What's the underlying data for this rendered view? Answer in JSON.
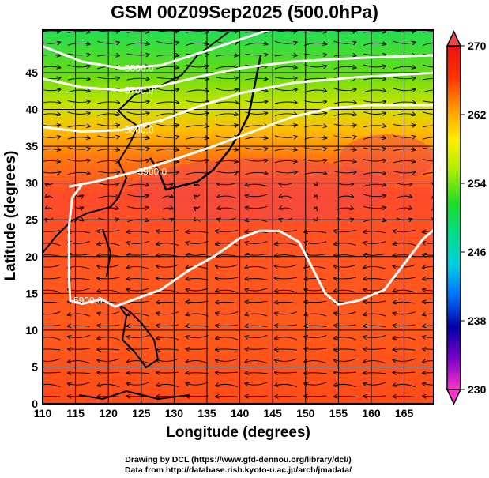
{
  "title": "GSM 00Z09Sep2025 (500.0hPa)",
  "xlabel": "Longitude (degrees)",
  "ylabel": "Latitude  (degrees)",
  "credits": [
    "Drawing by DCL (https://www.gfd-dennou.org/library/dcl/)",
    "Data from http://database.rish.kyoto-u.ac.jp/arch/jmadata/"
  ],
  "axes": {
    "x_ticks": [
      "110",
      "115",
      "120",
      "125",
      "130",
      "135",
      "140",
      "145",
      "150",
      "155",
      "160",
      "165"
    ],
    "y_ticks": [
      "0",
      "5",
      "10",
      "15",
      "20",
      "25",
      "30",
      "35",
      "40",
      "45"
    ],
    "xlim": [
      110,
      169.5
    ],
    "ylim": [
      0,
      50.8
    ]
  },
  "colorbar": {
    "ticks": [
      "270",
      "262",
      "254",
      "246",
      "238",
      "230"
    ],
    "range": [
      230,
      270
    ],
    "extend": "both",
    "colors": [
      "#ff33cc",
      "#7a00c8",
      "#0000a8",
      "#0070ff",
      "#00d0e0",
      "#00dd88",
      "#22dd22",
      "#aaee00",
      "#ffee00",
      "#ff9900",
      "#ff3300",
      "#ee1111"
    ]
  },
  "contours": [
    {
      "label": "5600.0",
      "points": [
        [
          110,
          48.6
        ],
        [
          116,
          46.5
        ],
        [
          122,
          45.6
        ],
        [
          128,
          46
        ],
        [
          135,
          48
        ],
        [
          140,
          49.5
        ],
        [
          145,
          51
        ]
      ]
    },
    {
      "label": "5700.0",
      "points": [
        [
          110,
          44.2
        ],
        [
          116,
          43
        ],
        [
          122,
          42.6
        ],
        [
          128,
          43.2
        ],
        [
          134,
          44.5
        ],
        [
          140,
          45.6
        ],
        [
          148,
          46.5
        ],
        [
          158,
          47
        ],
        [
          170,
          47.4
        ]
      ]
    },
    {
      "label": "5800.0",
      "points": [
        [
          110,
          37.6
        ],
        [
          116,
          37
        ],
        [
          122,
          37.2
        ],
        [
          128,
          38.5
        ],
        [
          134,
          40.5
        ],
        [
          140,
          42.2
        ],
        [
          148,
          43.6
        ],
        [
          158,
          44.4
        ],
        [
          170,
          45
        ]
      ]
    },
    {
      "label": "5900.0",
      "points": [
        [
          114,
          29.5
        ],
        [
          118,
          30.2
        ],
        [
          124,
          31.5
        ],
        [
          130,
          33.2
        ],
        [
          136,
          35
        ],
        [
          142,
          37
        ],
        [
          148,
          39
        ],
        [
          154,
          40.2
        ],
        [
          160,
          40.6
        ],
        [
          170,
          40.6
        ]
      ]
    },
    {
      "label": "5900.0",
      "points": [
        [
          116,
          29.8
        ],
        [
          114.5,
          28
        ],
        [
          114,
          24
        ],
        [
          114,
          17
        ],
        [
          114.2,
          14
        ],
        [
          116,
          13.6
        ],
        [
          119,
          14.2
        ],
        [
          121,
          13.2
        ],
        [
          124,
          14.2
        ],
        [
          128,
          15.5
        ],
        [
          132,
          18
        ],
        [
          136,
          20
        ],
        [
          140,
          22.5
        ],
        [
          143,
          23.5
        ],
        [
          146,
          23.5
        ],
        [
          149,
          22
        ],
        [
          151,
          18.5
        ],
        [
          153,
          15
        ],
        [
          155,
          13.5
        ],
        [
          158,
          14
        ],
        [
          162,
          15.5
        ],
        [
          165,
          19
        ],
        [
          168,
          22.5
        ],
        [
          170,
          24
        ]
      ]
    }
  ],
  "contour_label_positions_note_free": true
}
